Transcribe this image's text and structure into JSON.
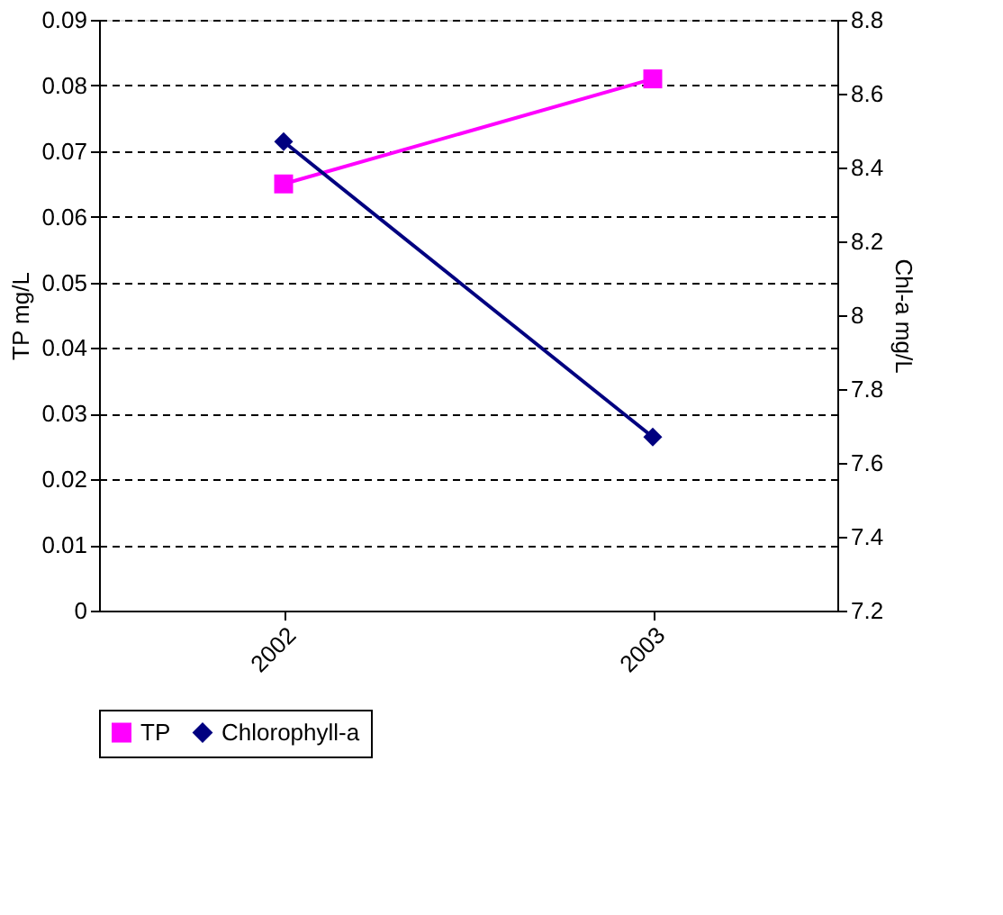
{
  "chart_data": {
    "type": "line",
    "categories": [
      "2002",
      "2003"
    ],
    "ylabel": "TP mg/L",
    "y2label": "Chl-a mg/L",
    "ylim": [
      0,
      0.09
    ],
    "yticks": [
      0,
      0.01,
      0.02,
      0.03,
      0.04,
      0.05,
      0.06,
      0.07,
      0.08,
      0.09
    ],
    "y2lim": [
      7.2,
      8.8
    ],
    "y2ticks": [
      7.2,
      7.4,
      7.6,
      7.8,
      8,
      8.2,
      8.4,
      8.6,
      8.8
    ],
    "grid": "y",
    "legend": "bottom",
    "series": [
      {
        "name": "TP",
        "color": "#ff00ff",
        "values": [
          0.065,
          0.081
        ],
        "marker": "square"
      },
      {
        "name": "Chlorophyll-a",
        "color": "#000080",
        "values": [
          8.47,
          7.67
        ],
        "axis": "y2",
        "marker": "diamond"
      }
    ]
  }
}
